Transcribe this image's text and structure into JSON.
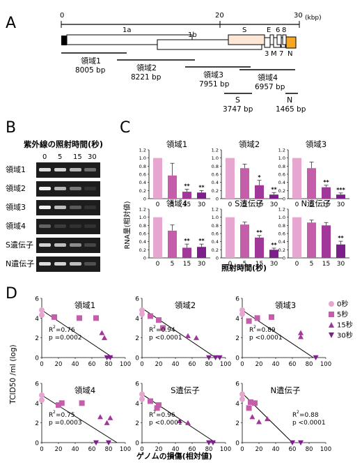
{
  "panels": {
    "A": "A",
    "B": "B",
    "C": "C",
    "D": "D"
  },
  "genome_map": {
    "axis_ticks": [
      "0",
      "20",
      "30"
    ],
    "axis_unit": "(kbp)",
    "genes": {
      "g1a": "1a",
      "g1b": "1b",
      "S": "S",
      "E": "E",
      "g6": "6",
      "g8": "8",
      "g3": "3",
      "M": "M",
      "g7": "7",
      "N": "N"
    },
    "regions": [
      {
        "name": "領域1",
        "size": "8005 bp"
      },
      {
        "name": "領域2",
        "size": "8221 bp"
      },
      {
        "name": "領域3",
        "size": "7951 bp"
      },
      {
        "name": "領域4",
        "size": "6957 bp"
      },
      {
        "name": "S",
        "size": "3747 bp"
      },
      {
        "name": "N",
        "size": "1465 bp"
      }
    ]
  },
  "gel": {
    "title": "紫外線の照射時間(秒)",
    "lanes": [
      "0",
      "5",
      "15",
      "30"
    ],
    "rows": [
      {
        "label": "領域1",
        "bands": [
          0.9,
          0.85,
          0.7,
          0.35
        ]
      },
      {
        "label": "領域2",
        "bands": [
          1.0,
          0.7,
          0.4,
          0.05
        ]
      },
      {
        "label": "領域3",
        "bands": [
          1.0,
          0.75,
          0.25,
          0.05
        ]
      },
      {
        "label": "領域4",
        "bands": [
          0.3,
          0.1,
          0.05,
          0.05
        ]
      },
      {
        "label": "S遺伝子",
        "bands": [
          0.85,
          0.75,
          0.5,
          0.15
        ]
      },
      {
        "label": "N遺伝子",
        "bands": [
          0.9,
          0.85,
          0.75,
          0.2
        ]
      }
    ]
  },
  "chart_data": [
    {
      "type": "bar",
      "ylabel": "RNA量(相対値)",
      "xlabel": "照射時間(秒)",
      "categories": [
        "0",
        "5",
        "15",
        "30"
      ],
      "ylim": [
        0,
        1.2
      ],
      "yticks": [
        "0",
        "0.2",
        "0.4",
        "0.6",
        "0.8",
        "1.0",
        "1.2"
      ],
      "bar_colors": [
        "#e6a6cf",
        "#c55eaa",
        "#a2379a",
        "#7d1f8a"
      ],
      "panels": [
        {
          "title": "領域1",
          "values": [
            1.0,
            0.57,
            0.17,
            0.15
          ],
          "errors": [
            0,
            0.3,
            0.06,
            0.05
          ],
          "stars": [
            "",
            "",
            "**",
            "**"
          ]
        },
        {
          "title": "領域2",
          "values": [
            1.0,
            0.75,
            0.33,
            0.1
          ],
          "errors": [
            0,
            0.1,
            0.12,
            0.05
          ],
          "stars": [
            "",
            "",
            "*",
            "**"
          ]
        },
        {
          "title": "領域3",
          "values": [
            1.0,
            0.75,
            0.28,
            0.1
          ],
          "errors": [
            0,
            0.15,
            0.05,
            0.04
          ],
          "stars": [
            "",
            "",
            "**",
            "***"
          ]
        },
        {
          "title": "領域4",
          "values": [
            1.0,
            0.67,
            0.25,
            0.27
          ],
          "errors": [
            0,
            0.14,
            0.09,
            0.07
          ],
          "stars": [
            "",
            "",
            "**",
            "**"
          ]
        },
        {
          "title": "S遺伝子",
          "values": [
            1.0,
            0.82,
            0.5,
            0.2
          ],
          "errors": [
            0,
            0.06,
            0.05,
            0.04
          ],
          "stars": [
            "",
            "",
            "**",
            "**"
          ]
        },
        {
          "title": "N遺伝子",
          "values": [
            1.0,
            0.87,
            0.8,
            0.33
          ],
          "errors": [
            0,
            0.06,
            0.07,
            0.08
          ],
          "stars": [
            "",
            "",
            "",
            "**"
          ]
        }
      ]
    },
    {
      "type": "scatter",
      "ylabel": "TCID50 /ml (log)",
      "xlabel": "ゲノムの損傷(相対値)",
      "xlim": [
        0,
        100
      ],
      "ylim": [
        0,
        6
      ],
      "xticks": [
        "0",
        "20",
        "40",
        "60",
        "80",
        "100"
      ],
      "yticks": [
        "0",
        "2",
        "4",
        "6"
      ],
      "legend": [
        {
          "label": "0秒",
          "marker": "circle",
          "color": "#e6a6cf"
        },
        {
          "label": "5秒",
          "marker": "square",
          "color": "#c55eaa"
        },
        {
          "label": "15秒",
          "marker": "triangle-up",
          "color": "#a2379a"
        },
        {
          "label": "30秒",
          "marker": "triangle-down",
          "color": "#7d1f8a"
        }
      ],
      "panels": [
        {
          "title": "領域1",
          "r2": "0.76",
          "p": "p =0.0002",
          "line": [
            [
              0,
              4.8
            ],
            [
              85,
              0
            ]
          ],
          "points": [
            [
              0,
              4.8,
              0
            ],
            [
              0,
              4.3,
              0
            ],
            [
              15,
              4.1,
              1
            ],
            [
              45,
              4.0,
              1
            ],
            [
              65,
              4.0,
              1
            ],
            [
              72,
              2.5,
              2
            ],
            [
              75,
              2.0,
              2
            ],
            [
              78,
              0,
              3
            ],
            [
              82,
              0,
              3
            ]
          ]
        },
        {
          "title": "領域2",
          "r2": "0.94",
          "p": "p <0.0001",
          "line": [
            [
              0,
              5.0
            ],
            [
              88,
              0
            ]
          ],
          "points": [
            [
              0,
              4.8,
              0
            ],
            [
              0,
              4.4,
              0
            ],
            [
              10,
              4.2,
              1
            ],
            [
              20,
              3.8,
              1
            ],
            [
              25,
              3.0,
              1
            ],
            [
              55,
              2.2,
              2
            ],
            [
              65,
              2.0,
              2
            ],
            [
              80,
              0,
              3
            ],
            [
              88,
              0,
              3
            ],
            [
              93,
              0,
              3
            ]
          ]
        },
        {
          "title": "領域3",
          "r2": "0.89",
          "p": "p <0.0001",
          "line": [
            [
              0,
              4.8
            ],
            [
              85,
              0
            ]
          ],
          "points": [
            [
              0,
              4.8,
              0
            ],
            [
              0,
              4.4,
              0
            ],
            [
              8,
              3.7,
              1
            ],
            [
              18,
              4.0,
              1
            ],
            [
              35,
              4.1,
              1
            ],
            [
              70,
              2.5,
              2
            ],
            [
              70,
              2.1,
              2
            ],
            [
              88,
              0,
              3
            ]
          ]
        },
        {
          "title": "領域4",
          "r2": "0.75",
          "p": "p =0.0003",
          "line": [
            [
              0,
              4.8
            ],
            [
              90,
              0
            ]
          ],
          "points": [
            [
              0,
              4.8,
              0
            ],
            [
              0,
              4.3,
              0
            ],
            [
              20,
              3.8,
              1
            ],
            [
              24,
              4.0,
              1
            ],
            [
              48,
              4.0,
              1
            ],
            [
              70,
              2.6,
              2
            ],
            [
              78,
              2.0,
              2
            ],
            [
              82,
              2.5,
              2
            ],
            [
              65,
              0,
              3
            ],
            [
              80,
              0,
              3
            ]
          ]
        },
        {
          "title": "S遺伝子",
          "r2": "0.96",
          "p": "p <0.0001",
          "line": [
            [
              0,
              4.9
            ],
            [
              88,
              0
            ]
          ],
          "points": [
            [
              0,
              4.9,
              0
            ],
            [
              0,
              4.4,
              0
            ],
            [
              10,
              4.2,
              1
            ],
            [
              18,
              3.5,
              1
            ],
            [
              20,
              3.8,
              1
            ],
            [
              45,
              2.2,
              2
            ],
            [
              55,
              2.0,
              2
            ],
            [
              80,
              0,
              3
            ],
            [
              85,
              0,
              3
            ]
          ]
        },
        {
          "title": "N遺伝子",
          "r2": "0.88",
          "p": "p <0.0001",
          "line": [
            [
              0,
              5.0
            ],
            [
              60,
              0
            ]
          ],
          "points": [
            [
              0,
              4.9,
              0
            ],
            [
              0,
              4.4,
              0
            ],
            [
              10,
              4.1,
              1
            ],
            [
              15,
              4.0,
              1
            ],
            [
              8,
              3.5,
              1
            ],
            [
              12,
              2.6,
              2
            ],
            [
              20,
              2.1,
              2
            ],
            [
              30,
              2.4,
              2
            ],
            [
              60,
              0,
              3
            ],
            [
              70,
              0,
              3
            ]
          ]
        }
      ]
    }
  ]
}
